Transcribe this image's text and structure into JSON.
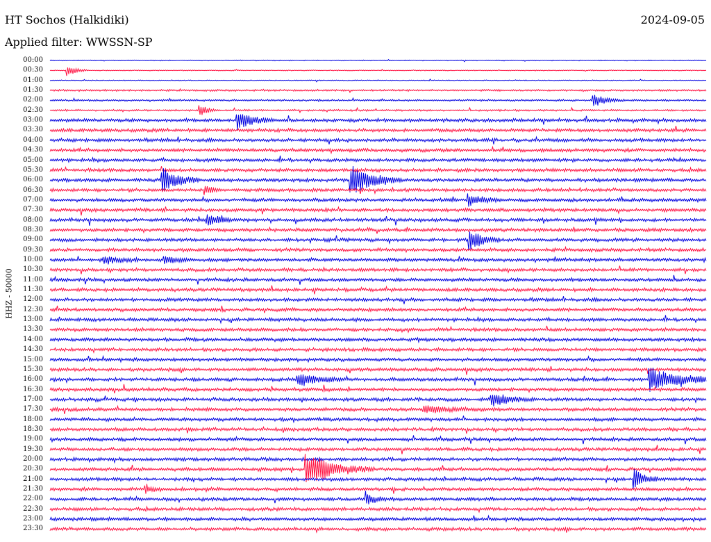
{
  "header": {
    "station": "HT Sochos (Halkidiki)",
    "date": "2024-09-05",
    "filter_text": "Applied filter: WWSSN-SP"
  },
  "channel_label": "HHZ - 50000",
  "colors": {
    "odd_row": "#0000e0",
    "even_row": "#ff1040",
    "background": "#ffffff"
  },
  "time_labels": [
    "00:00",
    "00:30",
    "01:00",
    "01:30",
    "02:00",
    "02:30",
    "03:00",
    "03:30",
    "04:00",
    "04:30",
    "05:00",
    "05:30",
    "06:00",
    "06:30",
    "07:00",
    "07:30",
    "08:00",
    "08:30",
    "09:00",
    "09:30",
    "10:00",
    "10:30",
    "11:00",
    "11:30",
    "12:00",
    "12:30",
    "13:00",
    "13:30",
    "14:00",
    "14:30",
    "15:00",
    "15:30",
    "16:00",
    "16:30",
    "17:00",
    "17:30",
    "18:00",
    "18:30",
    "19:00",
    "19:30",
    "20:00",
    "20:30",
    "21:00",
    "21:30",
    "22:00",
    "22:30",
    "23:00",
    "23:30"
  ]
}
